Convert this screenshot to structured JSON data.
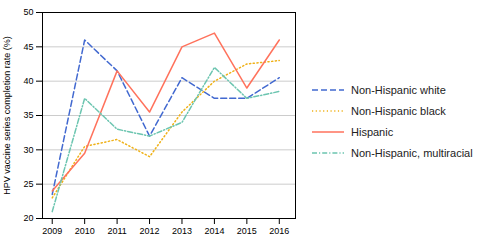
{
  "chart_data": {
    "type": "line",
    "x": [
      2009,
      2010,
      2011,
      2012,
      2013,
      2014,
      2015,
      2016
    ],
    "series": [
      {
        "name": "Non-Hispanic white",
        "values": [
          23.5,
          46.0,
          41.5,
          32.0,
          40.5,
          37.5,
          37.5,
          40.5
        ],
        "line_style": "dashed"
      },
      {
        "name": "Non-Hispanic black",
        "values": [
          23.0,
          30.5,
          31.5,
          29.0,
          35.5,
          40.0,
          42.5,
          43.0
        ],
        "line_style": "dotted"
      },
      {
        "name": "Hispanic",
        "values": [
          24.0,
          29.5,
          41.5,
          35.5,
          45.0,
          47.0,
          39.0,
          46.0
        ],
        "line_style": "solid"
      },
      {
        "name": "Non-Hispanic, multiracial",
        "values": [
          21.0,
          37.5,
          33.0,
          32.0,
          34.0,
          42.0,
          37.5,
          38.5
        ],
        "line_style": "dashdot"
      }
    ],
    "ylabel": "HPV vaccine series completion rate (%)",
    "xlim": [
      2008.7,
      2016.5
    ],
    "xticks": [
      2009,
      2010,
      2011,
      2012,
      2013,
      2014,
      2015,
      2016
    ],
    "ylim": [
      20,
      50
    ],
    "yticks": [
      20,
      25,
      30,
      35,
      40,
      45,
      50
    ],
    "grid": true,
    "legend": "right"
  }
}
